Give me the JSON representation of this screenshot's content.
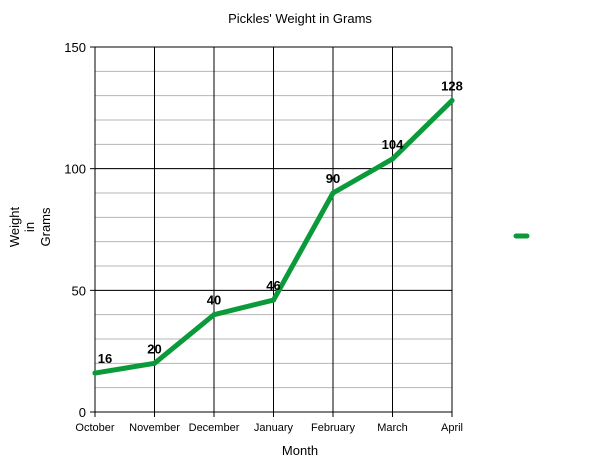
{
  "chart_data": {
    "type": "line",
    "title": "Pickles' Weight in Grams",
    "xlabel": "Month",
    "ylabel_lines": [
      "Weight",
      "in",
      "Grams"
    ],
    "categories": [
      "October",
      "November",
      "December",
      "January",
      "February",
      "March",
      "April"
    ],
    "series": [
      {
        "color": "#0a9a3a",
        "values": [
          16,
          20,
          40,
          46,
          90,
          104,
          128
        ],
        "data_labels": [
          "16",
          "20",
          "40",
          "46",
          "90",
          "104",
          "128"
        ]
      }
    ],
    "ylim": [
      0,
      150
    ],
    "yticks": [
      0,
      50,
      100,
      150
    ],
    "ytick_labels": [
      "0",
      "50",
      "100",
      "150"
    ],
    "minor_grid_step": 10,
    "grid": true,
    "legend": "right"
  }
}
